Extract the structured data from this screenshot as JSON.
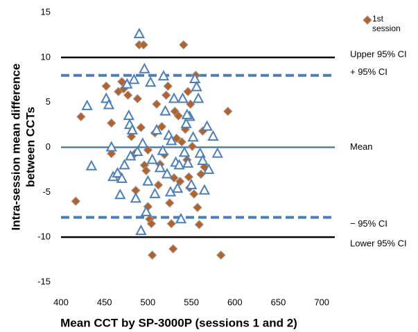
{
  "chart_data": {
    "type": "scatter",
    "xlabel": "Mean CCT by SP-3000P (sessions 1 and 2)",
    "ylabel": [
      "Intra-session mean difference",
      "between CCTs"
    ],
    "xlim": [
      400,
      715
    ],
    "ylim": [
      -15,
      15
    ],
    "xticks": [
      400,
      450,
      500,
      550,
      600,
      650,
      700
    ],
    "yticks": [
      -15,
      -10,
      -5,
      0,
      5,
      10,
      15
    ],
    "reference_lines": [
      {
        "label": "Upper 95% CI",
        "value": 10,
        "style": "solid",
        "color": "#000000"
      },
      {
        "label": "+ 95% CI",
        "value": 8,
        "style": "dashed",
        "color": "#4a7ebb"
      },
      {
        "label": "Mean",
        "value": 0,
        "style": "solid",
        "color": "#4a7ebb"
      },
      {
        "label": "− 95% CI",
        "value": -7.8,
        "style": "dashed",
        "color": "#4a7ebb"
      },
      {
        "label": "Lower 95% CI",
        "value": -10,
        "style": "solid",
        "color": "#000000"
      }
    ],
    "series": [
      {
        "name": "1st session",
        "marker": "diamond",
        "color": "#b5622a",
        "x": [
          417,
          423,
          452,
          458,
          466,
          470,
          472,
          477,
          481,
          485,
          488,
          490,
          495,
          492,
          496,
          498,
          500,
          502,
          504,
          505,
          508,
          510,
          512,
          516,
          519,
          521,
          523,
          525,
          527,
          529,
          531,
          533,
          535,
          537,
          539,
          541,
          543,
          545,
          547,
          549,
          551,
          553,
          555,
          557,
          559,
          561,
          563,
          565,
          584,
          592,
          486,
          514,
          530,
          546,
          548,
          500,
          458,
          466
        ],
        "values": [
          -6,
          3.4,
          6.8,
          2.7,
          6.2,
          7.3,
          6.5,
          5.8,
          1.2,
          -0.7,
          5.4,
          11.4,
          11.4,
          2.2,
          -2,
          -2.6,
          -6.6,
          -8,
          -8.5,
          -12,
          1.6,
          4.8,
          -4.2,
          2.3,
          -0.8,
          5.8,
          6.8,
          -6.2,
          -8.5,
          -11.3,
          4,
          1,
          3.5,
          -3.8,
          0.6,
          11.4,
          2,
          -1.4,
          -3.3,
          4.8,
          0.1,
          -5.2,
          8,
          -6.7,
          -8.6,
          -3,
          1.8,
          -2.2,
          -12,
          4,
          -4.8,
          -1.9,
          -3.4,
          6.2,
          -4.5,
          -0.3,
          -0.7,
          -3
        ]
      },
      {
        "marker": "triangle",
        "color": "#4a7ebb",
        "x": [
          430,
          435,
          452,
          455,
          458,
          460,
          465,
          468,
          470,
          473,
          476,
          478,
          479,
          480,
          482,
          484,
          486,
          488,
          490,
          492,
          494,
          496,
          498,
          500,
          503,
          505,
          508,
          510,
          514,
          517,
          518,
          520,
          522,
          524,
          526,
          530,
          532,
          534,
          536,
          538,
          540,
          542,
          544,
          546,
          548,
          550,
          552,
          554,
          556,
          558,
          560,
          563,
          565,
          568,
          570,
          575,
          580,
          545,
          527
        ],
        "values": [
          4.6,
          -2.1,
          5.4,
          4.7,
          0,
          -3.3,
          -2.9,
          -5.3,
          -3.5,
          -2,
          7,
          3.5,
          2.5,
          -1,
          1.9,
          7.5,
          -5.7,
          -0.5,
          12.6,
          -9.3,
          0.4,
          8.7,
          -7.2,
          -3.8,
          7.2,
          -1.4,
          -5.2,
          1.9,
          -2.3,
          -0.4,
          7.9,
          4,
          -3,
          1.3,
          -5,
          5.4,
          -1.7,
          -4.6,
          -2,
          -8,
          5.4,
          -0.6,
          2.6,
          -1.8,
          3.4,
          -4.2,
          1.1,
          7.6,
          6.7,
          5.4,
          -0.7,
          -1.5,
          -4.8,
          2.3,
          -2.5,
          1.2,
          -0.7,
          3.6,
          0.7
        ]
      }
    ]
  }
}
